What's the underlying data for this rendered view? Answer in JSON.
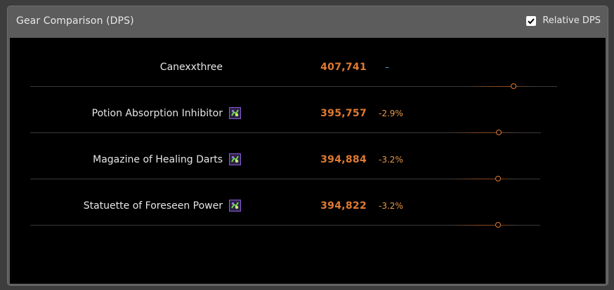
{
  "header": {
    "title": "Gear Comparison (DPS)",
    "toggle_label": "Relative DPS",
    "toggle_checked": true
  },
  "colors": {
    "dps_value": "#e07a32",
    "delta_negative": "#e89848",
    "delta_neutral": "#3bbec8",
    "item_icon_border": "#8a5cd8"
  },
  "rows": [
    {
      "name": "Canexxthree",
      "has_icon": false,
      "dps": "407,741",
      "delta": "–",
      "delta_kind": "neutral"
    },
    {
      "name": "Potion Absorption Inhibitor",
      "has_icon": true,
      "icon": "trinket-icon",
      "dps": "395,757",
      "delta": "-2.9%",
      "delta_kind": "negative"
    },
    {
      "name": "Magazine of Healing Darts",
      "has_icon": true,
      "icon": "trinket-icon",
      "dps": "394,884",
      "delta": "-3.2%",
      "delta_kind": "negative"
    },
    {
      "name": "Statuette of Foreseen Power",
      "has_icon": true,
      "icon": "trinket-icon",
      "dps": "394,822",
      "delta": "-3.2%",
      "delta_kind": "negative"
    }
  ]
}
